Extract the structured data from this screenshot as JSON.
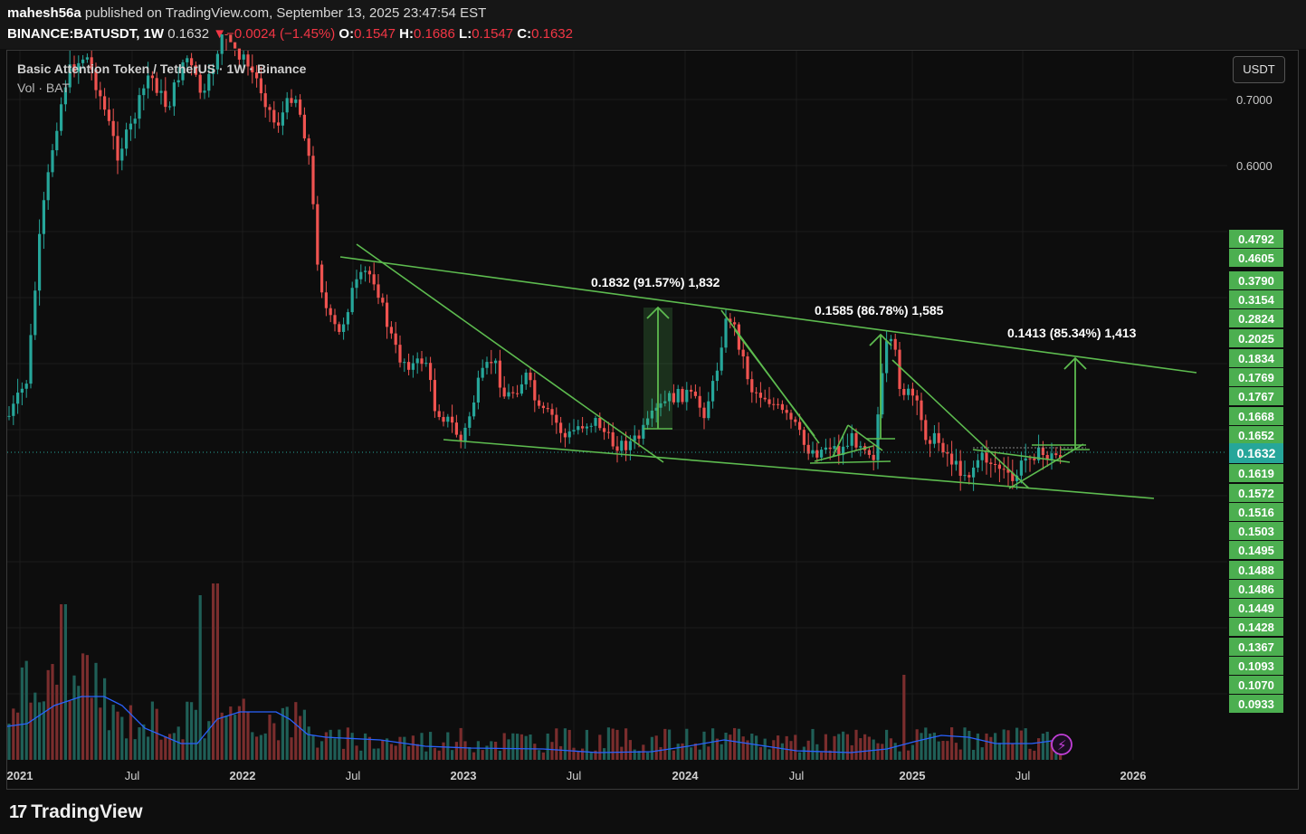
{
  "header": {
    "author": "mahesh56a",
    "published_text": " published on TradingView.com, September 13, 2025 23:47:54 EST",
    "symbol": "BINANCE:BATUSDT, 1W",
    "last_price": "0.1632",
    "change_arrow": "▼",
    "change": "−0.0024 (−1.45%)",
    "ohlc": [
      {
        "label": "O:",
        "value": "0.1547"
      },
      {
        "label": "H:",
        "value": "0.1686"
      },
      {
        "label": "L:",
        "value": "0.1547"
      },
      {
        "label": "C:",
        "value": "0.1632"
      }
    ]
  },
  "legend": {
    "title": "Basic Attention Token / TetherUS · 1W · Binance",
    "volume": "Vol · BAT"
  },
  "currency_button": "USDT",
  "footer": {
    "logo_mark": "17",
    "logo_text": "TradingView"
  },
  "colors": {
    "up": "#26a69a",
    "down": "#ef5350",
    "pattern": "#5dbb4f",
    "ma": "#2962ff",
    "price_label": "#26a69a",
    "green_label": "#4caf50"
  },
  "chart_data": {
    "type": "candlestick",
    "timeframe": "1W",
    "x_tick_labels": [
      "2021",
      "Jul",
      "2022",
      "Jul",
      "2023",
      "Jul",
      "2024",
      "Jul",
      "2025",
      "Jul",
      "2026"
    ],
    "y_tick_labels": [
      "0.7000",
      "0.6000"
    ],
    "last_price": "0.1632",
    "right_labels": [
      "0.4792",
      "0.4605",
      "0.3790",
      "0.3154",
      "0.2824",
      "0.2025",
      "0.1834",
      "0.1769",
      "0.1767",
      "0.1668",
      "0.1652",
      "0.1619",
      "0.1572",
      "0.1516",
      "0.1503",
      "0.1495",
      "0.1488",
      "0.1486",
      "0.1449",
      "0.1428",
      "0.1367",
      "0.1093",
      "0.1070",
      "0.0933"
    ],
    "annotations": [
      {
        "text": "0.1832 (91.57%) 1,832"
      },
      {
        "text": "0.1585 (86.78%) 1,585"
      },
      {
        "text": "0.1413 (85.34%) 1,413"
      }
    ],
    "patterns": [
      "descending channel",
      "falling wedge",
      "measured move"
    ],
    "indicators": [
      "Volume",
      "Volume MA"
    ],
    "visible_close_estimates": {
      "2021-01": 0.26,
      "2021-04": 0.9,
      "2021-07": 0.58,
      "2021-10": 0.78,
      "2021-12": 1.1,
      "2022-06": 0.38,
      "2022-08": 0.41,
      "2022-12": 0.17,
      "2023-04": 0.26,
      "2023-10": 0.16,
      "2024-03": 0.34,
      "2024-08": 0.16,
      "2024-12": 0.29,
      "2025-06": 0.135,
      "2025-09": 0.1632
    }
  }
}
